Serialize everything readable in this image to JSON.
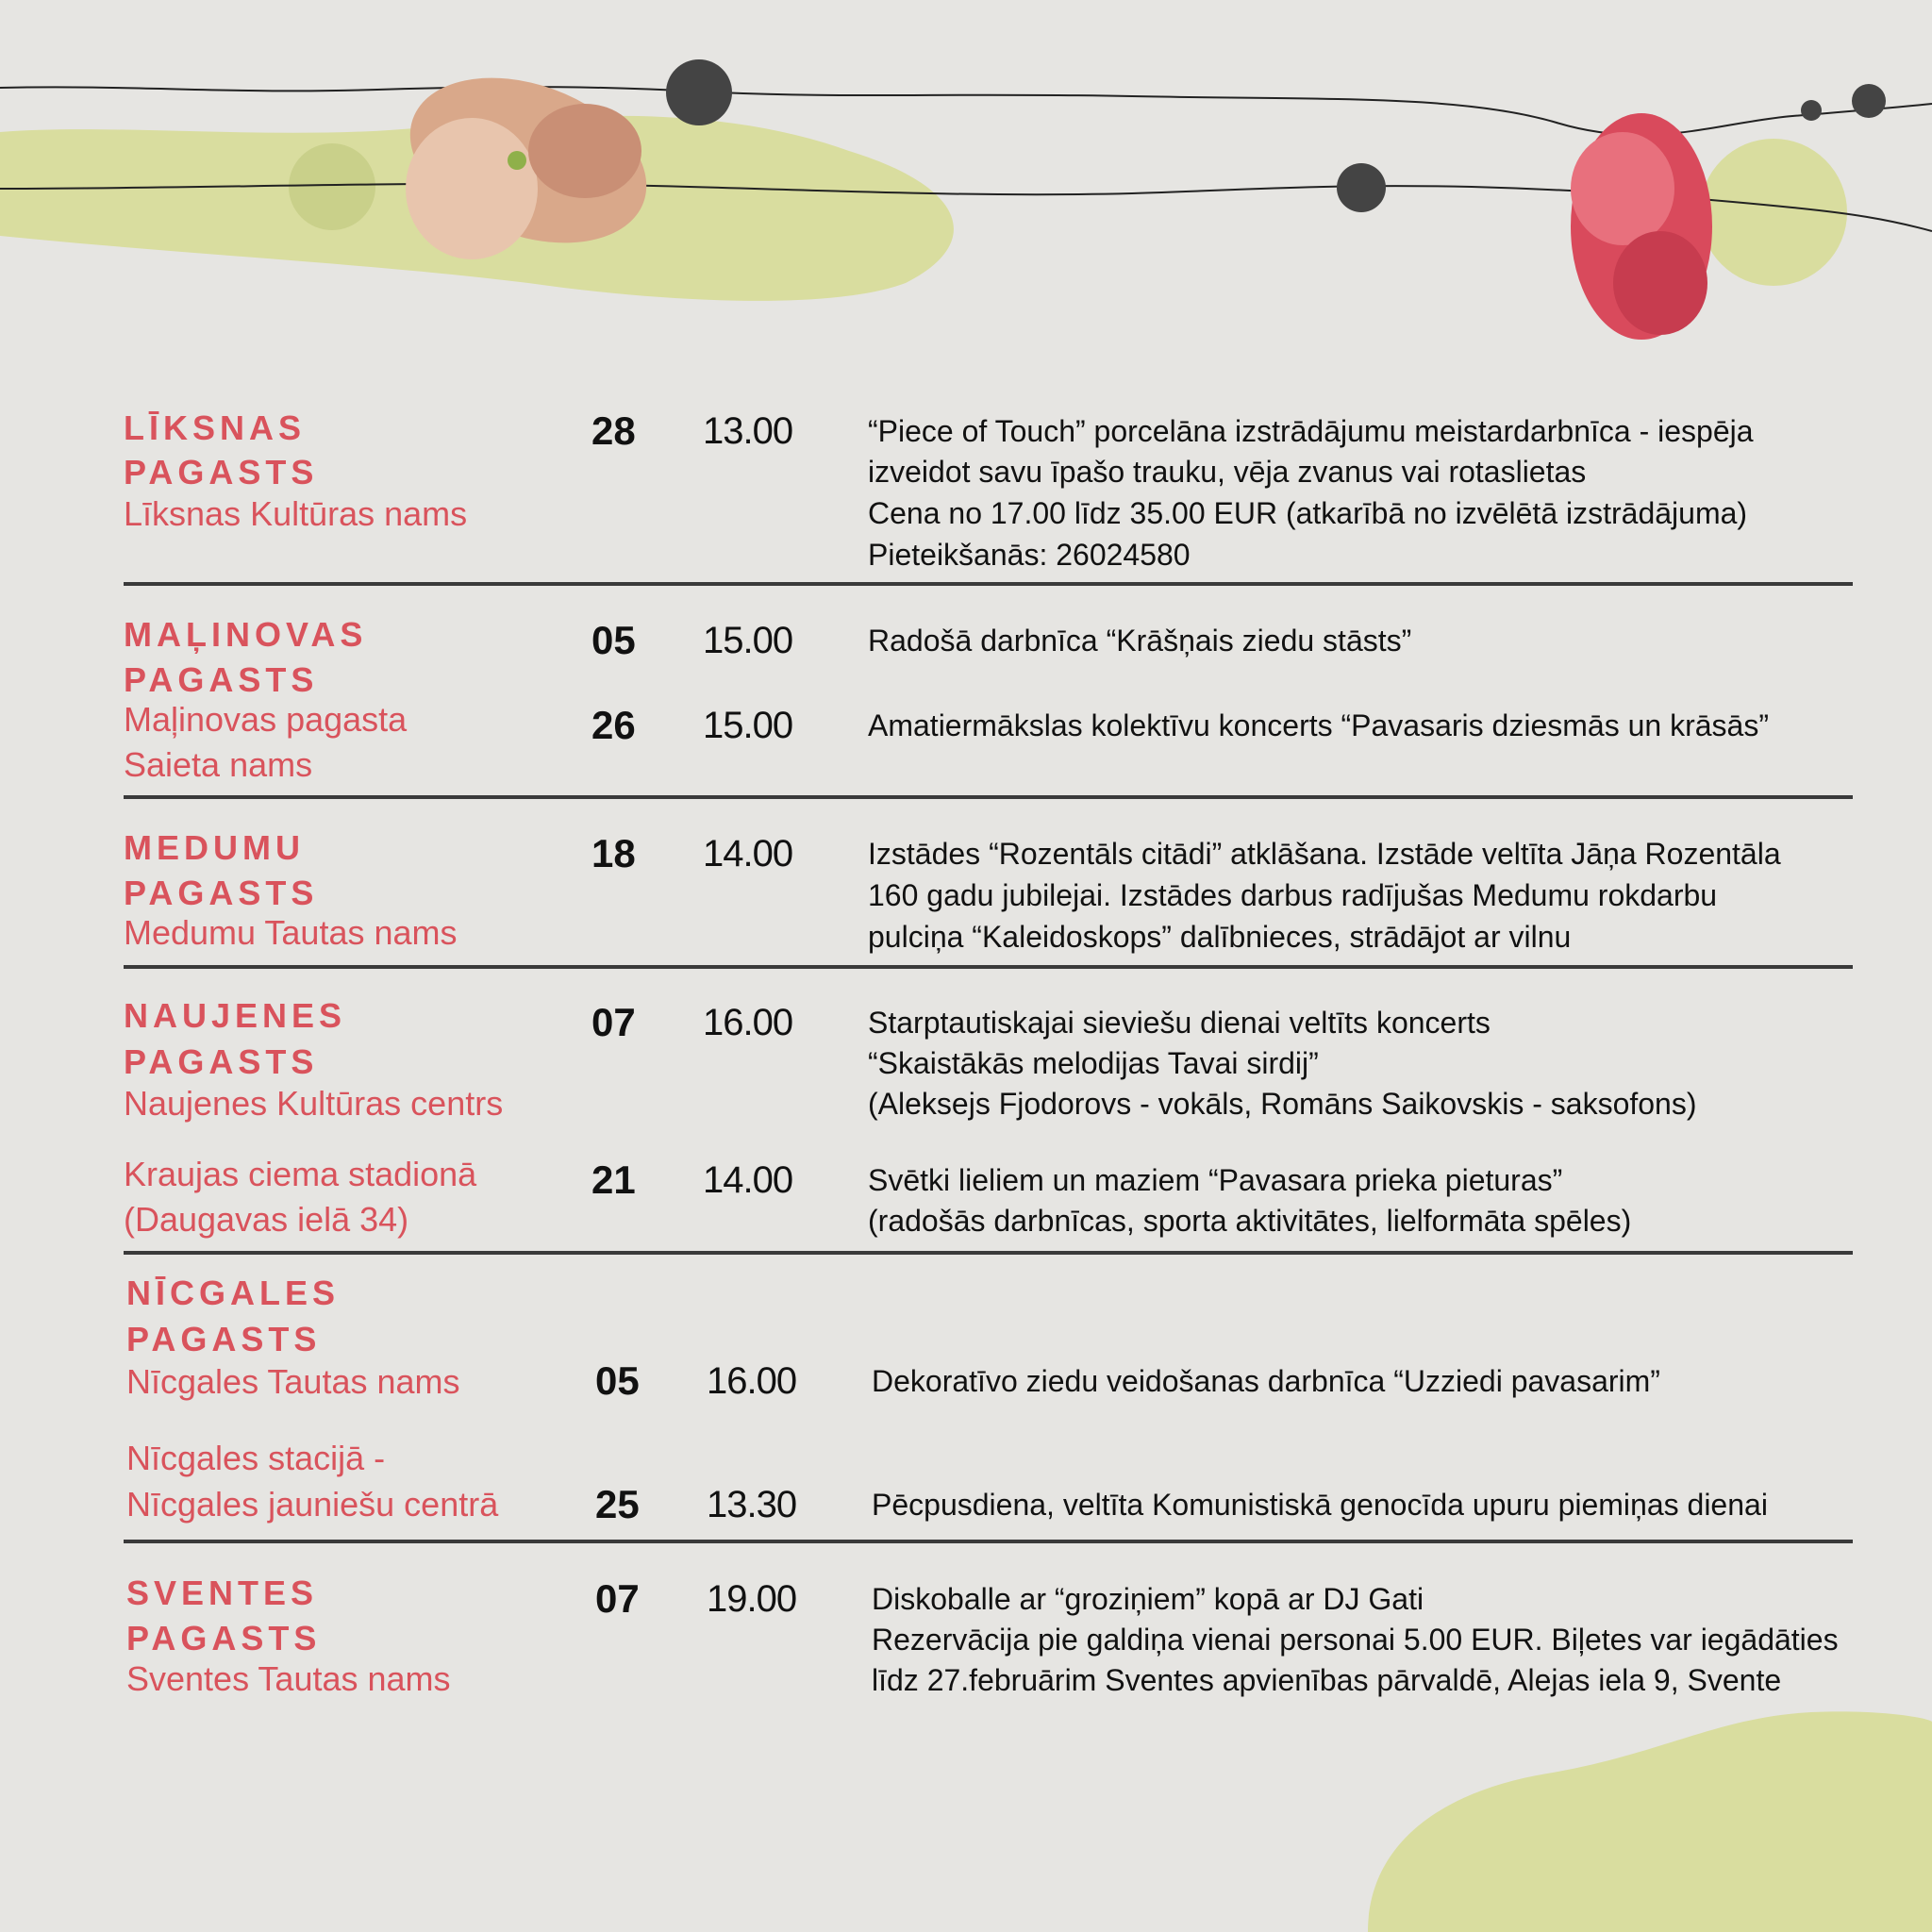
{
  "colors": {
    "accent": "#d9535c",
    "text": "#111111",
    "background": "#e6e5e2",
    "blob": "#d9dd9f",
    "divider": "#3a3a3a"
  },
  "sections": [
    {
      "heading": [
        "LĪKSNAS",
        "PAGASTS"
      ],
      "venues": [
        "Līksnas Kultūras nams"
      ],
      "events": [
        {
          "date": "28",
          "time": "13.00",
          "lines": [
            "“Piece of Touch” porcelāna izstrādājumu meistardarbnīca - iespēja",
            "izveidot savu īpašo trauku, vēja zvanus vai rotaslietas",
            "Cena no 17.00 līdz 35.00 EUR (atkarībā no izvēlētā izstrādājuma)",
            "Pieteikšanās: 26024580"
          ]
        }
      ]
    },
    {
      "heading": [
        "MAĻINOVAS",
        "PAGASTS"
      ],
      "venues": [
        "Maļinovas pagasta",
        "Saieta nams"
      ],
      "events": [
        {
          "date": "05",
          "time": "15.00",
          "lines": [
            "Radošā darbnīca “Krāšņais ziedu stāsts”"
          ]
        },
        {
          "date": "26",
          "time": "15.00",
          "lines": [
            "Amatiermākslas kolektīvu koncerts “Pavasaris dziesmās un krāsās”"
          ]
        }
      ]
    },
    {
      "heading": [
        "MEDUMU",
        "PAGASTS"
      ],
      "venues": [
        "Medumu Tautas nams"
      ],
      "events": [
        {
          "date": "18",
          "time": "14.00",
          "lines": [
            "Izstādes “Rozentāls citādi” atklāšana. Izstāde veltīta Jāņa Rozentāla",
            "160 gadu jubilejai. Izstādes darbus radījušas Medumu rokdarbu",
            "pulciņa “Kaleidoskops” dalībnieces, strādājot ar vilnu"
          ]
        }
      ]
    },
    {
      "heading": [
        "NAUJENES",
        "PAGASTS"
      ],
      "venues": [
        "Naujenes Kultūras centrs",
        "Kraujas ciema stadionā",
        "(Daugavas ielā 34)"
      ],
      "events": [
        {
          "date": "07",
          "time": "16.00",
          "lines": [
            "Starptautiskajai sieviešu dienai veltīts koncerts",
            "“Skaistākās melodijas Tavai sirdij”",
            "(Aleksejs Fjodorovs - vokāls, Romāns Saikovskis - saksofons)"
          ]
        },
        {
          "date": "21",
          "time": "14.00",
          "lines": [
            "Svētki lieliem un maziem “Pavasara prieka pieturas”",
            "(radošās darbnīcas, sporta aktivitātes, lielformāta spēles)"
          ]
        }
      ]
    },
    {
      "heading": [
        "NĪCGALES",
        "PAGASTS"
      ],
      "venues": [
        "Nīcgales Tautas nams",
        "Nīcgales stacijā -",
        "Nīcgales jauniešu centrā"
      ],
      "events": [
        {
          "date": "05",
          "time": "16.00",
          "lines": [
            "Dekoratīvo ziedu veidošanas darbnīca “Uzziedi pavasarim”"
          ]
        },
        {
          "date": "25",
          "time": "13.30",
          "lines": [
            "Pēcpusdiena, veltīta Komunistiskā genocīda upuru piemiņas dienai"
          ]
        }
      ]
    },
    {
      "heading": [
        "SVENTES",
        "PAGASTS"
      ],
      "venues": [
        "Sventes Tautas nams"
      ],
      "events": [
        {
          "date": "07",
          "time": "19.00",
          "lines": [
            "Diskoballe ar “groziņiem” kopā ar DJ Gati",
            "Rezervācija pie galdiņa vienai personai 5.00 EUR. Biļetes var iegādāties",
            "līdz 27.februārim Sventes apvienības pārvaldē, Alejas iela 9, Svente"
          ]
        }
      ]
    }
  ]
}
